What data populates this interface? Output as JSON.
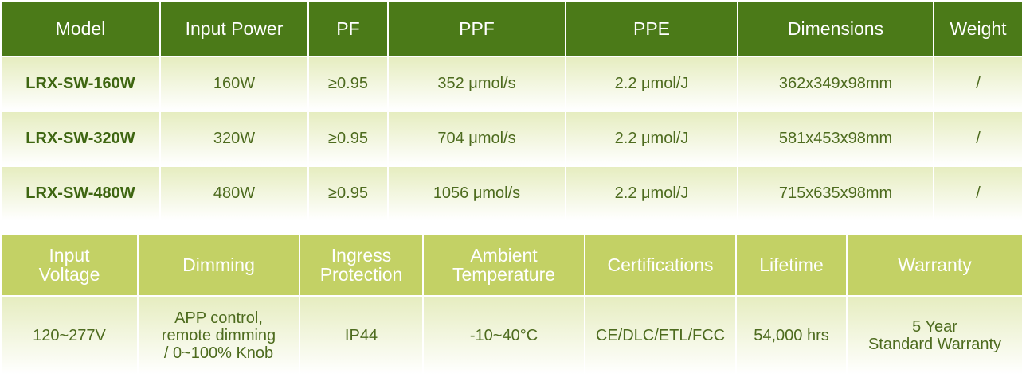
{
  "top": {
    "headers": [
      "Model",
      "Input Power",
      "PF",
      "PPF",
      "PPE",
      "Dimensions",
      "Weight"
    ],
    "rows": [
      [
        "LRX-SW-160W",
        "160W",
        "≥0.95",
        "352 μmol/s",
        "2.2 μmol/J",
        "362x349x98mm",
        "/"
      ],
      [
        "LRX-SW-320W",
        "320W",
        "≥0.95",
        "704 μmol/s",
        "2.2 μmol/J",
        "581x453x98mm",
        "/"
      ],
      [
        "LRX-SW-480W",
        "480W",
        "≥0.95",
        "1056 μmol/s",
        "2.2 μmol/J",
        "715x635x98mm",
        "/"
      ]
    ]
  },
  "bottom": {
    "headers": [
      "Input\nVoltage",
      "Dimming",
      "Ingress\nProtection",
      "Ambient\nTemperature",
      "Certifications",
      "Lifetime",
      "Warranty"
    ],
    "rows": [
      [
        "120~277V",
        "APP control,\nremote dimming\n/ 0~100% Knob",
        "IP44",
        "-10~40°C",
        "CE/DLC/ETL/FCC",
        "54,000 hrs",
        "5 Year\nStandard Warranty"
      ]
    ]
  }
}
